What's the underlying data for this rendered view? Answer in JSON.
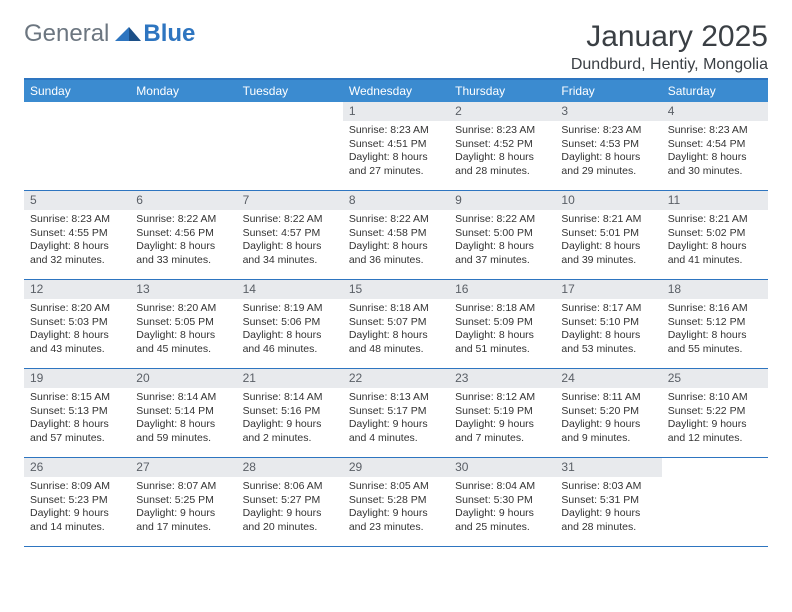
{
  "logo": {
    "left": "General",
    "right": "Blue"
  },
  "title": "January 2025",
  "location": "Dundburd, Hentiy, Mongolia",
  "colors": {
    "header_bg": "#3b8bd0",
    "header_text": "#ffffff",
    "border": "#2e75c0",
    "daynum_bg": "#e8eaed",
    "daynum_text": "#5a5f66",
    "body_text": "#333333",
    "logo_gray": "#6c7680",
    "logo_blue": "#2e75c0"
  },
  "day_headers": [
    "Sunday",
    "Monday",
    "Tuesday",
    "Wednesday",
    "Thursday",
    "Friday",
    "Saturday"
  ],
  "weeks": [
    [
      {
        "n": "",
        "l1": "",
        "l2": "",
        "l3": "",
        "l4": ""
      },
      {
        "n": "",
        "l1": "",
        "l2": "",
        "l3": "",
        "l4": ""
      },
      {
        "n": "",
        "l1": "",
        "l2": "",
        "l3": "",
        "l4": ""
      },
      {
        "n": "1",
        "l1": "Sunrise: 8:23 AM",
        "l2": "Sunset: 4:51 PM",
        "l3": "Daylight: 8 hours",
        "l4": "and 27 minutes."
      },
      {
        "n": "2",
        "l1": "Sunrise: 8:23 AM",
        "l2": "Sunset: 4:52 PM",
        "l3": "Daylight: 8 hours",
        "l4": "and 28 minutes."
      },
      {
        "n": "3",
        "l1": "Sunrise: 8:23 AM",
        "l2": "Sunset: 4:53 PM",
        "l3": "Daylight: 8 hours",
        "l4": "and 29 minutes."
      },
      {
        "n": "4",
        "l1": "Sunrise: 8:23 AM",
        "l2": "Sunset: 4:54 PM",
        "l3": "Daylight: 8 hours",
        "l4": "and 30 minutes."
      }
    ],
    [
      {
        "n": "5",
        "l1": "Sunrise: 8:23 AM",
        "l2": "Sunset: 4:55 PM",
        "l3": "Daylight: 8 hours",
        "l4": "and 32 minutes."
      },
      {
        "n": "6",
        "l1": "Sunrise: 8:22 AM",
        "l2": "Sunset: 4:56 PM",
        "l3": "Daylight: 8 hours",
        "l4": "and 33 minutes."
      },
      {
        "n": "7",
        "l1": "Sunrise: 8:22 AM",
        "l2": "Sunset: 4:57 PM",
        "l3": "Daylight: 8 hours",
        "l4": "and 34 minutes."
      },
      {
        "n": "8",
        "l1": "Sunrise: 8:22 AM",
        "l2": "Sunset: 4:58 PM",
        "l3": "Daylight: 8 hours",
        "l4": "and 36 minutes."
      },
      {
        "n": "9",
        "l1": "Sunrise: 8:22 AM",
        "l2": "Sunset: 5:00 PM",
        "l3": "Daylight: 8 hours",
        "l4": "and 37 minutes."
      },
      {
        "n": "10",
        "l1": "Sunrise: 8:21 AM",
        "l2": "Sunset: 5:01 PM",
        "l3": "Daylight: 8 hours",
        "l4": "and 39 minutes."
      },
      {
        "n": "11",
        "l1": "Sunrise: 8:21 AM",
        "l2": "Sunset: 5:02 PM",
        "l3": "Daylight: 8 hours",
        "l4": "and 41 minutes."
      }
    ],
    [
      {
        "n": "12",
        "l1": "Sunrise: 8:20 AM",
        "l2": "Sunset: 5:03 PM",
        "l3": "Daylight: 8 hours",
        "l4": "and 43 minutes."
      },
      {
        "n": "13",
        "l1": "Sunrise: 8:20 AM",
        "l2": "Sunset: 5:05 PM",
        "l3": "Daylight: 8 hours",
        "l4": "and 45 minutes."
      },
      {
        "n": "14",
        "l1": "Sunrise: 8:19 AM",
        "l2": "Sunset: 5:06 PM",
        "l3": "Daylight: 8 hours",
        "l4": "and 46 minutes."
      },
      {
        "n": "15",
        "l1": "Sunrise: 8:18 AM",
        "l2": "Sunset: 5:07 PM",
        "l3": "Daylight: 8 hours",
        "l4": "and 48 minutes."
      },
      {
        "n": "16",
        "l1": "Sunrise: 8:18 AM",
        "l2": "Sunset: 5:09 PM",
        "l3": "Daylight: 8 hours",
        "l4": "and 51 minutes."
      },
      {
        "n": "17",
        "l1": "Sunrise: 8:17 AM",
        "l2": "Sunset: 5:10 PM",
        "l3": "Daylight: 8 hours",
        "l4": "and 53 minutes."
      },
      {
        "n": "18",
        "l1": "Sunrise: 8:16 AM",
        "l2": "Sunset: 5:12 PM",
        "l3": "Daylight: 8 hours",
        "l4": "and 55 minutes."
      }
    ],
    [
      {
        "n": "19",
        "l1": "Sunrise: 8:15 AM",
        "l2": "Sunset: 5:13 PM",
        "l3": "Daylight: 8 hours",
        "l4": "and 57 minutes."
      },
      {
        "n": "20",
        "l1": "Sunrise: 8:14 AM",
        "l2": "Sunset: 5:14 PM",
        "l3": "Daylight: 8 hours",
        "l4": "and 59 minutes."
      },
      {
        "n": "21",
        "l1": "Sunrise: 8:14 AM",
        "l2": "Sunset: 5:16 PM",
        "l3": "Daylight: 9 hours",
        "l4": "and 2 minutes."
      },
      {
        "n": "22",
        "l1": "Sunrise: 8:13 AM",
        "l2": "Sunset: 5:17 PM",
        "l3": "Daylight: 9 hours",
        "l4": "and 4 minutes."
      },
      {
        "n": "23",
        "l1": "Sunrise: 8:12 AM",
        "l2": "Sunset: 5:19 PM",
        "l3": "Daylight: 9 hours",
        "l4": "and 7 minutes."
      },
      {
        "n": "24",
        "l1": "Sunrise: 8:11 AM",
        "l2": "Sunset: 5:20 PM",
        "l3": "Daylight: 9 hours",
        "l4": "and 9 minutes."
      },
      {
        "n": "25",
        "l1": "Sunrise: 8:10 AM",
        "l2": "Sunset: 5:22 PM",
        "l3": "Daylight: 9 hours",
        "l4": "and 12 minutes."
      }
    ],
    [
      {
        "n": "26",
        "l1": "Sunrise: 8:09 AM",
        "l2": "Sunset: 5:23 PM",
        "l3": "Daylight: 9 hours",
        "l4": "and 14 minutes."
      },
      {
        "n": "27",
        "l1": "Sunrise: 8:07 AM",
        "l2": "Sunset: 5:25 PM",
        "l3": "Daylight: 9 hours",
        "l4": "and 17 minutes."
      },
      {
        "n": "28",
        "l1": "Sunrise: 8:06 AM",
        "l2": "Sunset: 5:27 PM",
        "l3": "Daylight: 9 hours",
        "l4": "and 20 minutes."
      },
      {
        "n": "29",
        "l1": "Sunrise: 8:05 AM",
        "l2": "Sunset: 5:28 PM",
        "l3": "Daylight: 9 hours",
        "l4": "and 23 minutes."
      },
      {
        "n": "30",
        "l1": "Sunrise: 8:04 AM",
        "l2": "Sunset: 5:30 PM",
        "l3": "Daylight: 9 hours",
        "l4": "and 25 minutes."
      },
      {
        "n": "31",
        "l1": "Sunrise: 8:03 AM",
        "l2": "Sunset: 5:31 PM",
        "l3": "Daylight: 9 hours",
        "l4": "and 28 minutes."
      },
      {
        "n": "",
        "l1": "",
        "l2": "",
        "l3": "",
        "l4": ""
      }
    ]
  ]
}
